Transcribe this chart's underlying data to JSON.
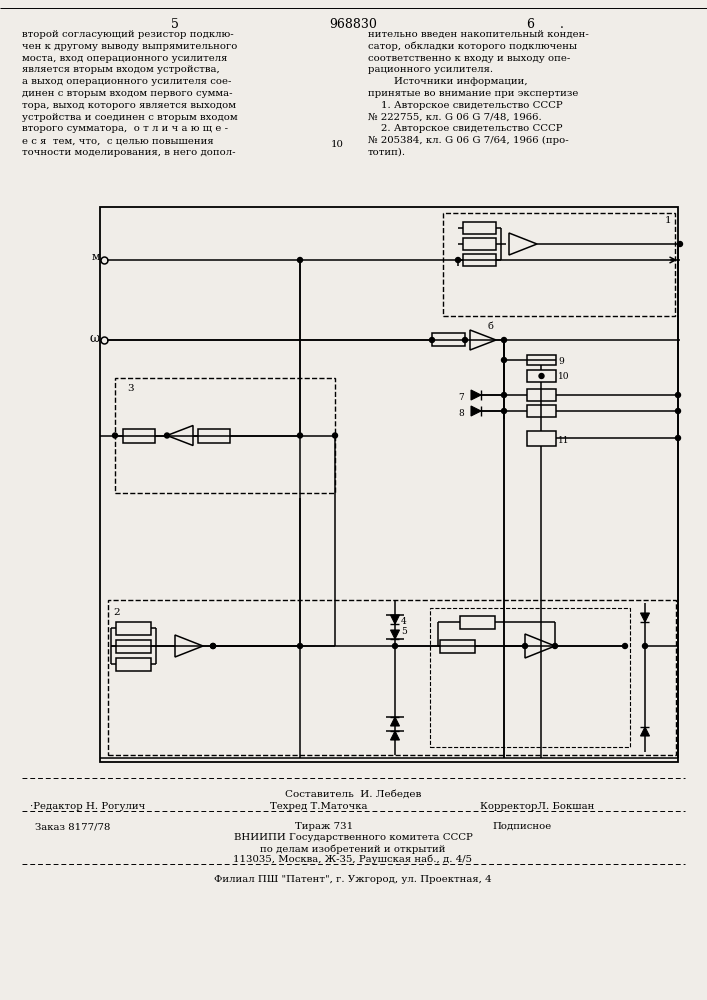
{
  "page_color": "#f0ede8",
  "header_number_left": "5",
  "header_title": "968830",
  "header_number_right": "6",
  "text_left": "второй согласующий резистор подклю-\nчен к другому выводу выпрямительного\nмоста, вход операционного усилителя\nявляется вторым входом устройства,\nа выход операционного усилителя сое-\nдинен с вторым входом первого сумма-\nтора, выход которого является выходом\nустройства и соединен с вторым входом\nвторого сумматора,  о т л и ч а ю щ е -\nе с я  тем, что,  с целью повышения\nточности моделирования, в него допол-",
  "text_right": "нительно введен накопительный конден-\nсатор, обкладки которого подключены\nсоответственно к входу и выходу опе-\nрационного усилителя.\n        Источники информации,\nпринятые во внимание при экспертизе\n    1. Авторское свидетельство СССР\n№ 222755, кл. G 06 G 7/48, 1966.\n    2. Авторское свидетельство СССР\n№ 205384, кл. G 06 G 7/64, 1966 (про-\nтотип).",
  "footer_line1": "Составитель  И. Лебедев",
  "footer_line2_left": "·Редактор Н. Рогулич",
  "footer_line2_mid": "Техред Т.Маточка",
  "footer_line2_right": "КорректорЛ. Бокшан",
  "footer_line3_left": "Заказ 8177/78",
  "footer_line3_mid": "Тираж 731",
  "footer_line3_right": "Подписное",
  "footer_line4": "ВНИИПИ Государственного комитета СССР",
  "footer_line5": "по делам изобретений и открытий",
  "footer_line6": "113035, Москва, Ж-35, Раушская наб., д. 4/5",
  "footer_line7": "Филиал ПШ \"Патент\", г. Ужгород, ул. Проектная, 4"
}
